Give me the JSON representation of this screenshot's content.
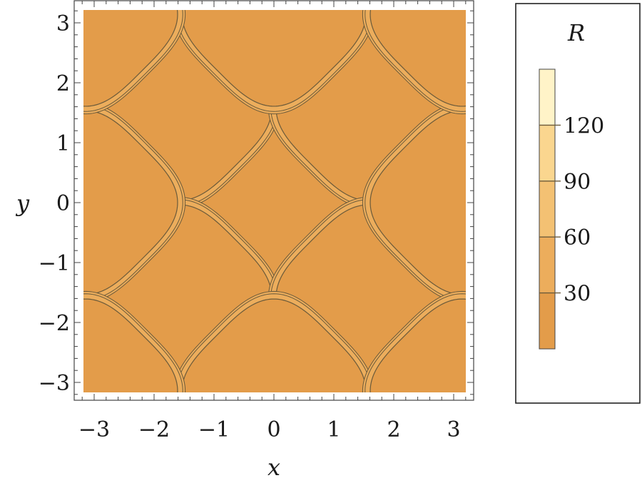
{
  "chart_data": {
    "type": "contour",
    "function_note": "",
    "x": {
      "label": "x",
      "range": [
        -3.3,
        3.3
      ],
      "ticks": [
        -3,
        -2,
        -1,
        0,
        1,
        2,
        3
      ],
      "tick_labels": [
        "−3",
        "−2",
        "−1",
        "0",
        "1",
        "2",
        "3"
      ]
    },
    "y": {
      "label": "y",
      "range": [
        -3.3,
        3.3
      ],
      "ticks": [
        -3,
        -2,
        -1,
        0,
        1,
        2,
        3
      ],
      "tick_labels": [
        "−3",
        "−2",
        "−1",
        "0",
        "1",
        "2",
        "3"
      ]
    },
    "data_extent": [
      -3.1416,
      3.1416
    ],
    "lobes": [
      {
        "cx": 0,
        "cy": 0
      },
      {
        "cx": -1.5708,
        "cy": 1.5708
      },
      {
        "cx": 1.5708,
        "cy": 1.5708
      },
      {
        "cx": -1.5708,
        "cy": -1.5708
      },
      {
        "cx": 1.5708,
        "cy": -1.5708
      },
      {
        "cx": -3.1416,
        "cy": 0
      },
      {
        "cx": 3.1416,
        "cy": 0
      },
      {
        "cx": 0,
        "cy": 3.1416
      },
      {
        "cx": 0,
        "cy": -3.1416
      },
      {
        "cx": -3.1416,
        "cy": 3.1416
      },
      {
        "cx": 3.1416,
        "cy": 3.1416
      },
      {
        "cx": -3.1416,
        "cy": -3.1416
      },
      {
        "cx": 3.1416,
        "cy": -3.1416
      }
    ],
    "fill_color": "#e39c4a",
    "contour_line_color": "#6b5a3a",
    "legend": {
      "title": "R",
      "range": [
        0,
        150
      ],
      "ticks": [
        30,
        60,
        90,
        120
      ],
      "tick_labels": [
        "30",
        "60",
        "90",
        "120"
      ],
      "band_colors": [
        "#e39c4a",
        "#ecad5c",
        "#f3c173",
        "#fad68f",
        "#fff3c8"
      ]
    }
  }
}
